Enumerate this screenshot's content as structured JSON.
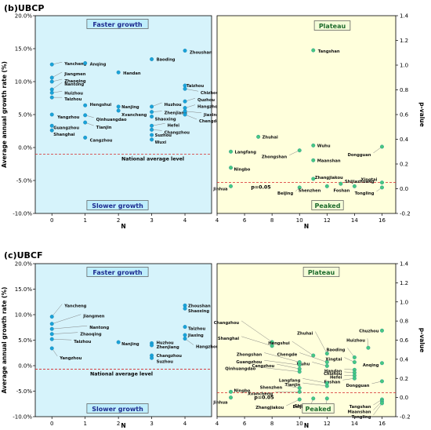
{
  "chart_data": [
    {
      "type": "scatter",
      "title": "(b)UBCP",
      "panel": "left",
      "xlabel": "N",
      "ylabel": "Average annual growth rate (%)",
      "xlim": [
        -0.5,
        4.8
      ],
      "ylim": [
        -10,
        20
      ],
      "xticks": [
        "0",
        "1",
        "2",
        "3",
        "4"
      ],
      "yticks": [
        "-10.0%",
        "-5.0%",
        "0.0%",
        "5.0%",
        "10.0%",
        "15.0%",
        "20.0%"
      ],
      "top_box": "Faster growth",
      "bottom_box": "Slower growth",
      "national_label": "National average level",
      "national_level": -1.0,
      "points": [
        {
          "name": "Yancheng",
          "x": 0,
          "y": 12.6
        },
        {
          "name": "Jiangmen",
          "x": 0,
          "y": 10.6
        },
        {
          "name": "Zhaoqing",
          "x": 0,
          "y": 10.0
        },
        {
          "name": "Nantong",
          "x": 0,
          "y": 8.8
        },
        {
          "name": "Huizhou",
          "x": 0,
          "y": 8.3
        },
        {
          "name": "Taizhou",
          "x": 0,
          "y": 7.6
        },
        {
          "name": "Yangzhou",
          "x": 0,
          "y": 5.0
        },
        {
          "name": "Guangzhou",
          "x": 0,
          "y": 3.3
        },
        {
          "name": "Shanghai",
          "x": 0,
          "y": 2.6
        },
        {
          "name": "Anqing",
          "x": 1,
          "y": 12.8
        },
        {
          "name": "Hengshui",
          "x": 1,
          "y": 6.4
        },
        {
          "name": "Qinhuangdao",
          "x": 1,
          "y": 4.9
        },
        {
          "name": "Tianjin",
          "x": 1,
          "y": 3.8
        },
        {
          "name": "Cangzhou",
          "x": 1,
          "y": 1.5
        },
        {
          "name": "Handan",
          "x": 2,
          "y": 11.4
        },
        {
          "name": "Nanjing",
          "x": 2,
          "y": 6.2
        },
        {
          "name": "Xvancheng",
          "x": 2,
          "y": 5.6
        },
        {
          "name": "Baoding",
          "x": 3,
          "y": 13.4
        },
        {
          "name": "Huzhou",
          "x": 3,
          "y": 6.2
        },
        {
          "name": "Zhenjiang",
          "x": 3,
          "y": 5.4
        },
        {
          "name": "Shaoxing",
          "x": 3,
          "y": 4.7
        },
        {
          "name": "Hefei",
          "x": 3,
          "y": 3.3
        },
        {
          "name": "Changzhou",
          "x": 3,
          "y": 2.7
        },
        {
          "name": "Suzhou",
          "x": 3,
          "y": 1.9
        },
        {
          "name": "Wuxi",
          "x": 3,
          "y": 1.2
        },
        {
          "name": "Zhoushan",
          "x": 4,
          "y": 14.7
        },
        {
          "name": "Taizhou",
          "x": 4,
          "y": 9.4
        },
        {
          "name": "Chizhou",
          "x": 4,
          "y": 8.9
        },
        {
          "name": "Quzhou",
          "x": 4,
          "y": 7.0
        },
        {
          "name": "Hangzhou",
          "x": 4,
          "y": 6.0
        },
        {
          "name": "Jiaxing",
          "x": 4,
          "y": 5.5
        },
        {
          "name": "Chengde",
          "x": 4,
          "y": 5.0
        }
      ]
    },
    {
      "type": "scatter",
      "panel": "right",
      "xlabel": "N",
      "ylabel": "p-value",
      "xlim": [
        4,
        17
      ],
      "ylim": [
        -0.2,
        1.4
      ],
      "xticks": [
        "4",
        "6",
        "8",
        "10",
        "12",
        "14",
        "16"
      ],
      "yticks": [
        "-0.2",
        "0.0",
        "0.2",
        "0.4",
        "0.6",
        "0.8",
        "1.0",
        "1.2",
        "1.4"
      ],
      "top_box": "Plateau",
      "bottom_box": "Peaked",
      "threshold_label": "p=0.05",
      "threshold": 0.05,
      "points": [
        {
          "name": "Tangshan",
          "x": 11,
          "y": 1.12
        },
        {
          "name": "Zhuhai",
          "x": 7,
          "y": 0.42
        },
        {
          "name": "Wuhu",
          "x": 11,
          "y": 0.35
        },
        {
          "name": "Zhongshan",
          "x": 10,
          "y": 0.31
        },
        {
          "name": "Dongguan",
          "x": 16,
          "y": 0.34
        },
        {
          "name": "Langfang",
          "x": 5,
          "y": 0.3
        },
        {
          "name": "Maanshan",
          "x": 11,
          "y": 0.23
        },
        {
          "name": "Ningbo",
          "x": 5,
          "y": 0.17
        },
        {
          "name": "Zhangjiakou",
          "x": 11,
          "y": 0.08
        },
        {
          "name": "Xingtai",
          "x": 16,
          "y": 0.05
        },
        {
          "name": "Shijiazhuang",
          "x": 13,
          "y": 0.04
        },
        {
          "name": "Jinhua",
          "x": 5,
          "y": 0.02
        },
        {
          "name": "Beijing",
          "x": 10,
          "y": 0.01
        },
        {
          "name": "Shenzhen",
          "x": 12,
          "y": 0.02
        },
        {
          "name": "Foshan",
          "x": 14,
          "y": 0.02
        },
        {
          "name": "Tongling",
          "x": 16,
          "y": 0.01
        }
      ]
    },
    {
      "type": "scatter",
      "title": "(c)UBCF",
      "panel": "left",
      "xlabel": "N",
      "ylabel": "Average annual growth rate (%)",
      "xlim": [
        -0.5,
        4.8
      ],
      "ylim": [
        -10,
        20
      ],
      "xticks": [
        "0",
        "1",
        "2",
        "3",
        "4"
      ],
      "yticks": [
        "-10.0%",
        "-5.0%",
        "0.0%",
        "5.0%",
        "10.0%",
        "15.0%",
        "20.0%"
      ],
      "top_box": "Faster growth",
      "bottom_box": "Slower growth",
      "national_label": "National average level",
      "national_level": -0.7,
      "points": [
        {
          "name": "Yancheng",
          "x": 0,
          "y": 9.6
        },
        {
          "name": "Jiangmen",
          "x": 0,
          "y": 8.2
        },
        {
          "name": "Nantong",
          "x": 0,
          "y": 7.2
        },
        {
          "name": "Zhaoqing",
          "x": 0,
          "y": 6.2
        },
        {
          "name": "Taizhou",
          "x": 0,
          "y": 5.2
        },
        {
          "name": "Yangzhou",
          "x": 0,
          "y": 3.4
        },
        {
          "name": "Nanjing",
          "x": 2,
          "y": 4.6
        },
        {
          "name": "Huzhou",
          "x": 3,
          "y": 4.4
        },
        {
          "name": "Zhenjiang",
          "x": 3,
          "y": 4.0
        },
        {
          "name": "Changzhou",
          "x": 3,
          "y": 2.0
        },
        {
          "name": "Suzhou",
          "x": 3,
          "y": 1.5
        },
        {
          "name": "Zhoushan",
          "x": 4,
          "y": 11.8
        },
        {
          "name": "Shaoxing",
          "x": 4,
          "y": 11.2
        },
        {
          "name": "Taizhou",
          "x": 4,
          "y": 7.6
        },
        {
          "name": "Jiaxing",
          "x": 4,
          "y": 6.0
        },
        {
          "name": "Hangzhou",
          "x": 4,
          "y": 5.3
        }
      ]
    },
    {
      "type": "scatter",
      "panel": "right",
      "xlabel": "N",
      "ylabel": "p-value",
      "xlim": [
        4,
        17
      ],
      "ylim": [
        -0.2,
        1.4
      ],
      "xticks": [
        "4",
        "6",
        "8",
        "10",
        "12",
        "14",
        "16"
      ],
      "yticks": [
        "-0.2",
        "0.0",
        "0.2",
        "0.4",
        "0.6",
        "0.8",
        "1.0",
        "1.2",
        "1.4"
      ],
      "top_box": "Plateau",
      "bottom_box": "Peaked",
      "threshold_label": "p=0.05",
      "threshold": 0.05,
      "points": [
        {
          "name": "Chuzhou",
          "x": 16,
          "y": 0.7
        },
        {
          "name": "Changzhou",
          "x": 8,
          "y": 0.58
        },
        {
          "name": "Shanghai",
          "x": 8,
          "y": 0.54
        },
        {
          "name": "Huizhou",
          "x": 15,
          "y": 0.52
        },
        {
          "name": "Zhuhai",
          "x": 12,
          "y": 0.46
        },
        {
          "name": "Hengshui",
          "x": 11,
          "y": 0.44
        },
        {
          "name": "Baoding",
          "x": 14,
          "y": 0.42
        },
        {
          "name": "Anqing",
          "x": 16,
          "y": 0.36
        },
        {
          "name": "Xingtai",
          "x": 14,
          "y": 0.37
        },
        {
          "name": "Wuhu",
          "x": 12,
          "y": 0.33
        },
        {
          "name": "Handan",
          "x": 14,
          "y": 0.29
        },
        {
          "name": "Chizhou",
          "x": 14,
          "y": 0.26
        },
        {
          "name": "Hefei",
          "x": 14,
          "y": 0.23
        },
        {
          "name": "Foshan",
          "x": 14,
          "y": 0.2
        },
        {
          "name": "Dongguan",
          "x": 16,
          "y": 0.17
        },
        {
          "name": "Langfang",
          "x": 12,
          "y": 0.15
        },
        {
          "name": "Tianjin",
          "x": 12,
          "y": 0.12
        },
        {
          "name": "Cangzhou",
          "x": 10,
          "y": 0.3
        },
        {
          "name": "Guangzhou",
          "x": 10,
          "y": 0.34
        },
        {
          "name": "Zhongshan",
          "x": 10,
          "y": 0.37
        },
        {
          "name": "Chengde",
          "x": 12,
          "y": 0.37
        },
        {
          "name": "Qinhuangdao",
          "x": 10,
          "y": 0.27
        },
        {
          "name": "Shenzhen",
          "x": 10,
          "y": 0.1
        },
        {
          "name": "Ningbo",
          "x": 5,
          "y": 0.06
        },
        {
          "name": "Xvancheng",
          "x": 10,
          "y": 0.06
        },
        {
          "name": "Jinhua",
          "x": 5,
          "y": 0.0
        },
        {
          "name": "Zhangjiakou",
          "x": 10,
          "y": -0.02
        },
        {
          "name": "Beijing",
          "x": 11,
          "y": -0.01
        },
        {
          "name": "Shijiazhuang",
          "x": 12,
          "y": -0.01
        },
        {
          "name": "Tangshan",
          "x": 16,
          "y": -0.02
        },
        {
          "name": "Maanshan",
          "x": 16,
          "y": -0.04
        },
        {
          "name": "Tongling",
          "x": 16,
          "y": -0.06
        }
      ]
    }
  ]
}
